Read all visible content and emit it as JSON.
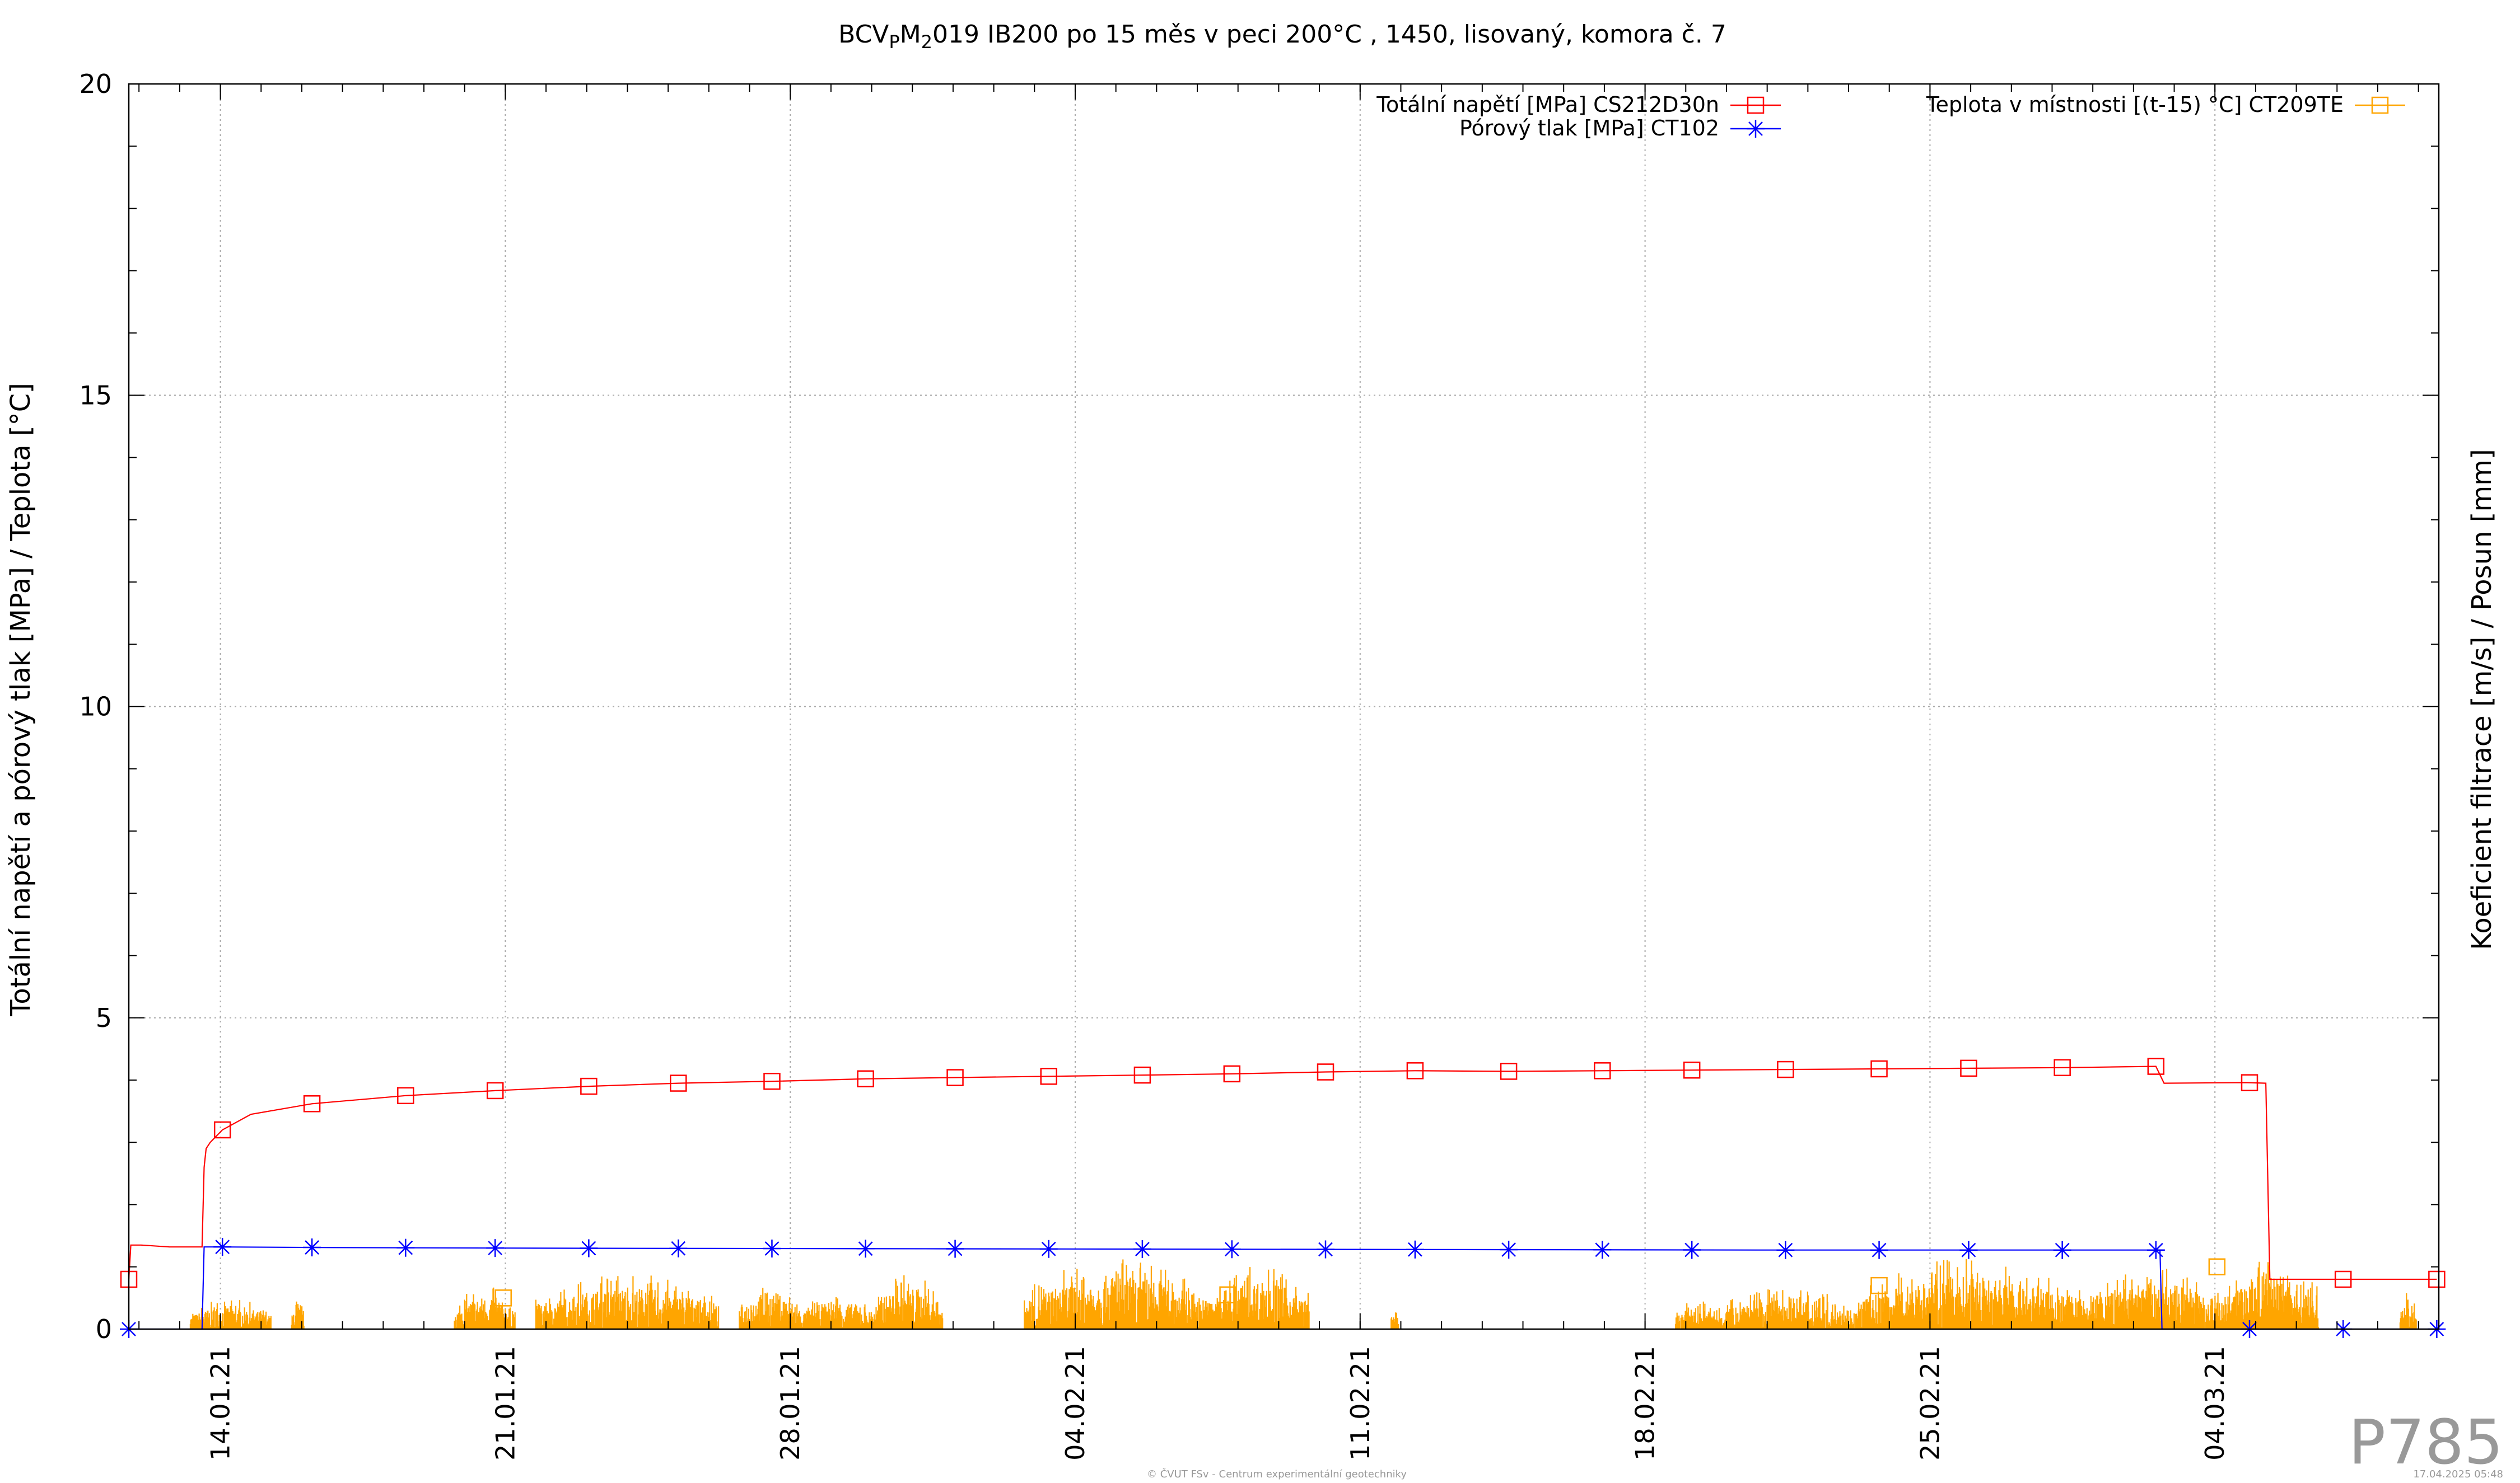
{
  "chart_data": {
    "type": "line",
    "title_base": "BCV",
    "title_sub1": "P",
    "title_mid": "M",
    "title_sub2": "2",
    "title_rest": "019 IB200 po 15 měs v peci 200°C , 1450, lisovaný, komora č. 7",
    "ylabel": "Totální napětí a pórový tlak [MPa] / Teplota [°C]",
    "y2label": "Koeficient filtrace [m/s] / Posun [mm]",
    "xlabel": "",
    "ylim": [
      0,
      20
    ],
    "yticks": [
      "0",
      "5",
      "10",
      "15",
      "20"
    ],
    "xlim": [
      "2021-01-11 18:00",
      "2021-03-08 12:00"
    ],
    "xtick_labels": [
      "14.01.21",
      "21.01.21",
      "28.01.21",
      "04.02.21",
      "11.02.21",
      "18.02.21",
      "25.02.21",
      "04.03.21"
    ],
    "xtick_days": [
      2.25,
      9.25,
      16.25,
      23.25,
      30.25,
      37.25,
      44.25,
      51.25
    ],
    "grid": true,
    "legend_placement": "top",
    "series": [
      {
        "name": "Totální napětí [MPa] CS212D30n",
        "color": "#ff0000",
        "marker": "square",
        "x_days": [
          0,
          0.05,
          0.3,
          1.0,
          1.8,
          1.85,
          1.9,
          2.0,
          2.3,
          3.0,
          4.5,
          6.8,
          9.0,
          11.3,
          13.5,
          15.8,
          18.1,
          20.3,
          22.6,
          24.9,
          27.1,
          29.4,
          31.6,
          33.9,
          36.2,
          38.4,
          40.7,
          43.0,
          45.2,
          47.5,
          49.8,
          50.0,
          52.0,
          52.5,
          52.6,
          53.0,
          56.7
        ],
        "y": [
          0.8,
          1.35,
          1.35,
          1.32,
          1.32,
          2.6,
          2.9,
          3.0,
          3.2,
          3.45,
          3.62,
          3.75,
          3.83,
          3.9,
          3.95,
          3.98,
          4.02,
          4.04,
          4.06,
          4.08,
          4.1,
          4.13,
          4.15,
          4.14,
          4.15,
          4.16,
          4.17,
          4.18,
          4.19,
          4.2,
          4.22,
          3.95,
          3.96,
          3.95,
          0.8,
          0.8,
          0.8
        ],
        "marker_days": [
          0,
          2.3,
          4.5,
          6.8,
          9.0,
          11.3,
          13.5,
          15.8,
          18.1,
          20.3,
          22.6,
          24.9,
          27.1,
          29.4,
          31.6,
          33.9,
          36.2,
          38.4,
          40.7,
          43.0,
          45.2,
          47.5,
          49.8,
          52.1,
          54.4,
          56.7
        ]
      },
      {
        "name": "Pórový tlak [MPa] CT102",
        "color": "#0000ff",
        "marker": "asterisk",
        "x_days": [
          0,
          1.8,
          1.85,
          2.3,
          5.0,
          10.0,
          20.0,
          30.0,
          40.0,
          49.9,
          49.95,
          56.7
        ],
        "y": [
          0.0,
          0.0,
          1.32,
          1.32,
          1.31,
          1.3,
          1.29,
          1.28,
          1.27,
          1.27,
          0.0,
          0.0
        ],
        "marker_days": [
          0,
          2.3,
          4.5,
          6.8,
          9.0,
          11.3,
          13.5,
          15.8,
          18.1,
          20.3,
          22.6,
          24.9,
          27.1,
          29.4,
          31.6,
          33.9,
          36.2,
          38.4,
          40.7,
          43.0,
          45.2,
          47.5,
          49.8,
          52.1,
          54.4,
          56.7
        ]
      },
      {
        "name": "Teplota v místnosti [(t-15) °C] CT209TE",
        "color": "#ffa500",
        "marker": "square",
        "noise_segments": [
          {
            "from": 1.5,
            "to": 3.5,
            "peak": 0.5
          },
          {
            "from": 4.0,
            "to": 4.3,
            "peak": 0.5
          },
          {
            "from": 8.0,
            "to": 9.5,
            "peak": 0.7
          },
          {
            "from": 10.0,
            "to": 14.5,
            "peak": 0.9
          },
          {
            "from": 15.0,
            "to": 16.5,
            "peak": 0.8
          },
          {
            "from": 16.5,
            "to": 18.3,
            "peak": 0.6
          },
          {
            "from": 18.3,
            "to": 20.0,
            "peak": 0.9
          },
          {
            "from": 22.0,
            "to": 26.5,
            "peak": 1.15
          },
          {
            "from": 26.5,
            "to": 29.0,
            "peak": 1.05
          },
          {
            "from": 31.0,
            "to": 31.2,
            "peak": 0.4
          },
          {
            "from": 38.0,
            "to": 39.0,
            "peak": 0.5
          },
          {
            "from": 39.0,
            "to": 42.5,
            "peak": 0.7
          },
          {
            "from": 42.5,
            "to": 48.0,
            "peak": 1.15
          },
          {
            "from": 48.0,
            "to": 51.5,
            "peak": 1.0
          },
          {
            "from": 51.5,
            "to": 53.8,
            "peak": 1.2
          },
          {
            "from": 55.8,
            "to": 56.2,
            "peak": 0.6
          }
        ],
        "marker_days": [
          9.2,
          27.0,
          43.0,
          51.3
        ],
        "marker_y": [
          0.5,
          0.55,
          0.7,
          1.0
        ]
      }
    ]
  },
  "watermark": "P785",
  "footer_left": "© ČVUT FSv - Centrum experimentální geotechniky",
  "footer_right": "17.04.2025 05:48"
}
